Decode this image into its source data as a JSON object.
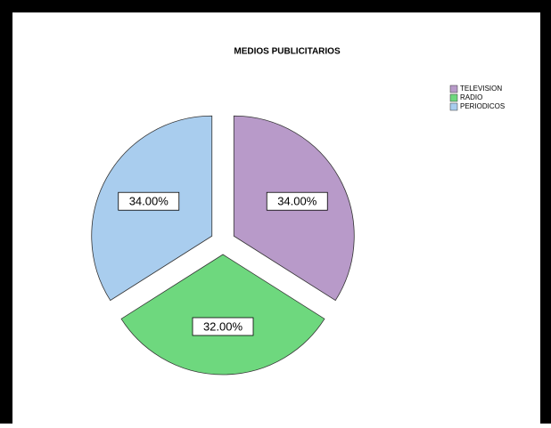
{
  "chart_data": {
    "type": "pie",
    "title": "MEDIOS PUBLICITARIOS",
    "categories": [
      "TELEVISION",
      "RADIO",
      "PERIODICOS"
    ],
    "values": [
      34,
      32,
      34
    ],
    "value_labels": [
      "34.00%",
      "32.00%",
      "34.00%"
    ],
    "colors": [
      "#b89ac9",
      "#6ed87e",
      "#a9cdee"
    ],
    "legend": "top-right"
  }
}
